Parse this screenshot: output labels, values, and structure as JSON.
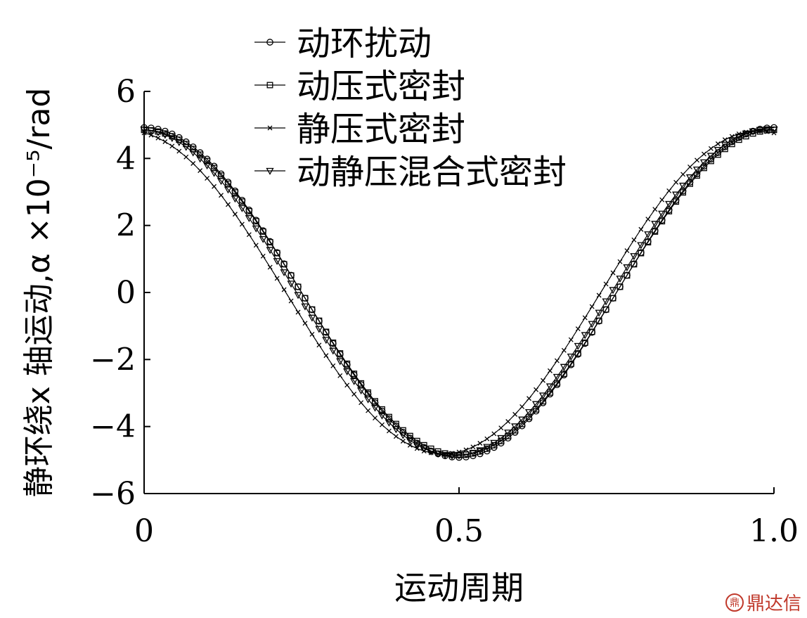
{
  "chart_data": {
    "type": "line",
    "xlabel": "运动周期",
    "ylabel": "静环绕x 轴运动,α ×10⁻⁵/rad",
    "xlim": [
      0,
      1.0
    ],
    "ylim": [
      -6,
      6
    ],
    "x_ticks": [
      "0",
      "0.5",
      "1.0"
    ],
    "y_ticks": [
      "−6",
      "−4",
      "−2",
      "0",
      "2",
      "4",
      "6"
    ],
    "x_tick_values": [
      0,
      0.5,
      1.0
    ],
    "y_tick_values": [
      -6,
      -4,
      -2,
      0,
      2,
      4,
      6
    ],
    "legend_placement": "top-center",
    "series": [
      {
        "name": "动环扰动",
        "marker": "circle",
        "phase": 0.0,
        "amp": 4.92
      },
      {
        "name": "动压式密封",
        "marker": "square",
        "phase": 0.0,
        "amp": 4.85
      },
      {
        "name": "静压式密封",
        "marker": "x",
        "phase": -0.025,
        "amp": 4.82
      },
      {
        "name": "动静压混合式密封",
        "marker": "triangle-down",
        "phase": -0.008,
        "amp": 4.87
      }
    ],
    "curve": "cosine over one period, α = amp·cos(2π(x − phase))",
    "points_per_series": 91
  },
  "watermark": {
    "icon_text": "鼎",
    "text": "鼎达信"
  }
}
